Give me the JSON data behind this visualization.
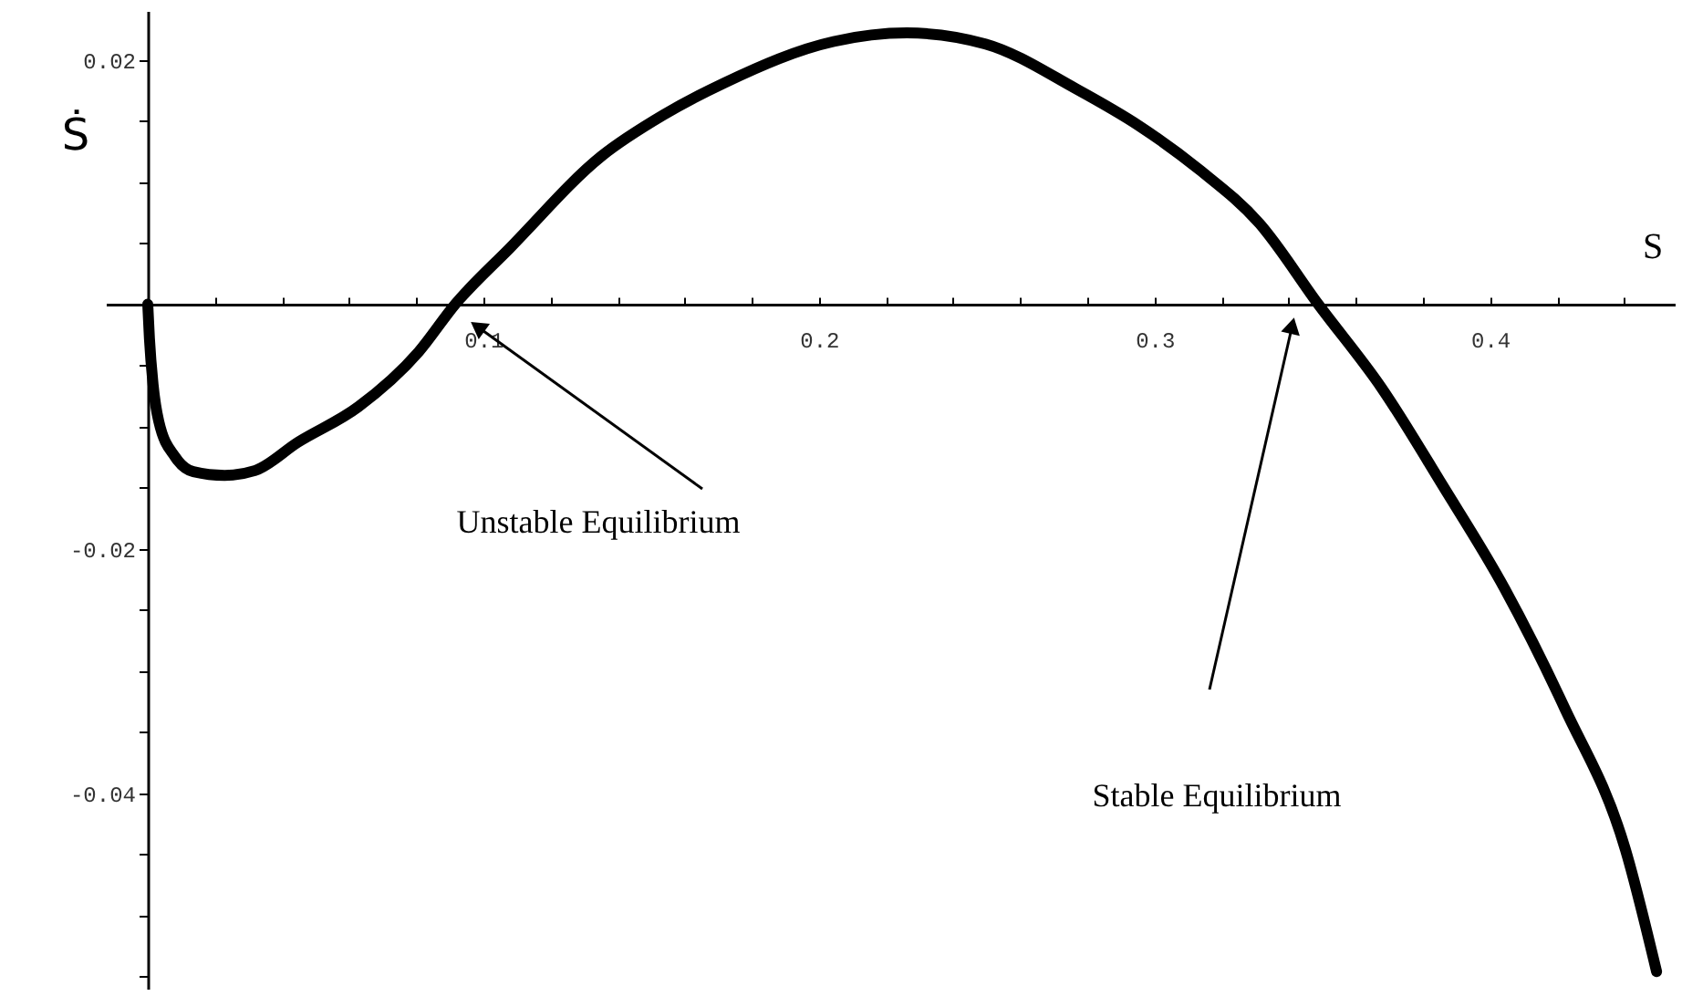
{
  "chart_data": {
    "type": "line",
    "xlabel": "S",
    "ylabel": "Ṡ",
    "xlim": [
      -0.0125,
      0.455
    ],
    "ylim": [
      -0.056,
      0.024
    ],
    "xticks": [
      {
        "value": 0.02,
        "label": null
      },
      {
        "value": 0.04,
        "label": null
      },
      {
        "value": 0.06,
        "label": null
      },
      {
        "value": 0.08,
        "label": null
      },
      0.1,
      {
        "value": 0.12,
        "label": null
      },
      {
        "value": 0.14,
        "label": null
      },
      {
        "value": 0.16,
        "label": null
      },
      {
        "value": 0.18,
        "label": null
      },
      0.2,
      {
        "value": 0.22,
        "label": null
      },
      {
        "value": 0.24,
        "label": null
      },
      {
        "value": 0.26,
        "label": null
      },
      {
        "value": 0.28,
        "label": null
      },
      0.3,
      {
        "value": 0.32,
        "label": null
      },
      {
        "value": 0.34,
        "label": null
      },
      {
        "value": 0.36,
        "label": null
      },
      {
        "value": 0.38,
        "label": null
      },
      0.4,
      {
        "value": 0.42,
        "label": null
      },
      {
        "value": 0.44,
        "label": null
      }
    ],
    "yticks": [
      {
        "value": -0.055,
        "label": null
      },
      {
        "value": -0.05,
        "label": null
      },
      {
        "value": -0.045,
        "label": null
      },
      -0.04,
      {
        "value": -0.035,
        "label": null
      },
      {
        "value": -0.03,
        "label": null
      },
      {
        "value": -0.025,
        "label": null
      },
      -0.02,
      {
        "value": -0.015,
        "label": null
      },
      {
        "value": -0.01,
        "label": null
      },
      {
        "value": -0.005,
        "label": null
      },
      {
        "value": 0.005,
        "label": null
      },
      {
        "value": 0.01,
        "label": null
      },
      {
        "value": 0.015,
        "label": null
      },
      0.02
    ],
    "grid": false,
    "marker": "none",
    "line_style": "solid",
    "series": [
      {
        "color": "#000000",
        "x": [
          0,
          0.0005,
          0.0016,
          0.0033,
          0.0082,
          0.0136,
          0.0229,
          0.032,
          0.0447,
          0.0627,
          0.0807,
          0.0916,
          0.1079,
          0.1351,
          0.1537,
          0.1717,
          0.2044,
          0.2262,
          0.2496,
          0.2768,
          0.2954,
          0.3134,
          0.3313,
          0.3488,
          0.3678,
          0.3858,
          0.4044,
          0.4223,
          0.4403,
          0.4496
        ],
        "values": [
          0,
          -0.0028,
          -0.0066,
          -0.0096,
          -0.0125,
          -0.0137,
          -0.014,
          -0.0136,
          -0.0113,
          -0.0084,
          -0.0039,
          0,
          0.0046,
          0.0121,
          0.0155,
          0.0181,
          0.0215,
          0.0222,
          0.0213,
          0.0176,
          0.0146,
          0.011,
          0.0066,
          0,
          -0.0069,
          -0.0148,
          -0.0233,
          -0.0331,
          -0.0446,
          -0.0546
        ]
      }
    ],
    "annotations": [
      "Unstable Equilibrium",
      "Stable Equilibrium"
    ]
  }
}
